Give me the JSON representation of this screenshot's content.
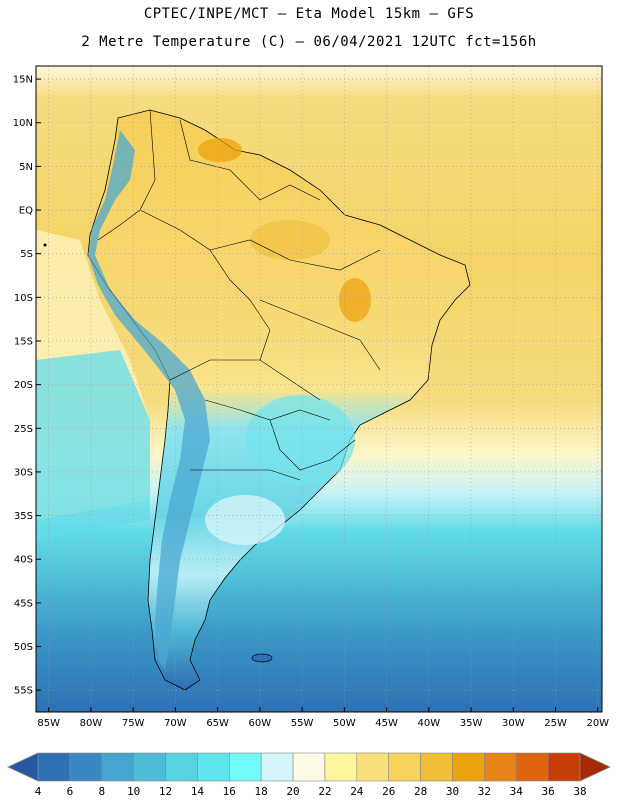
{
  "title": {
    "line1": "CPTEC/INPE/MCT –  Eta Model 15km – GFS",
    "line2": "2 Metre Temperature (C) – 06/04/2021 12UTC fct=156h"
  },
  "map": {
    "lat_labels": [
      "15N",
      "10N",
      "5N",
      "EQ",
      "5S",
      "10S",
      "15S",
      "20S",
      "25S",
      "30S",
      "35S",
      "40S",
      "45S",
      "50S",
      "55S"
    ],
    "lon_labels": [
      "85W",
      "80W",
      "75W",
      "70W",
      "65W",
      "60W",
      "55W",
      "50W",
      "45W",
      "40W",
      "35W",
      "30W",
      "25W",
      "20W"
    ],
    "lat_range": [
      -57.5,
      16.5
    ],
    "lon_range": [
      -86.5,
      -19.5
    ],
    "grid": "dotted",
    "colors": {
      "land_warm": "#f5d46e",
      "ocean_north": "#f2cc58",
      "ocean_cool": "#5fd8e8",
      "ocean_cold": "#3a86c4",
      "andes": "#4aa8d2"
    }
  },
  "colorbar": {
    "ticks": [
      "4",
      "6",
      "8",
      "10",
      "12",
      "14",
      "16",
      "18",
      "20",
      "22",
      "24",
      "26",
      "28",
      "30",
      "32",
      "34",
      "36",
      "38"
    ],
    "colors": [
      "#2858a0",
      "#2e70b4",
      "#3a88c2",
      "#46a4d0",
      "#4ebcd6",
      "#56d2e0",
      "#5ee6ec",
      "#72fafa",
      "#d4f6fa",
      "#fdfbe6",
      "#fdf69c",
      "#f9e07a",
      "#f6d25a",
      "#f0be38",
      "#eca20e",
      "#e88418",
      "#de6410",
      "#c83e08",
      "#a42a04"
    ]
  }
}
